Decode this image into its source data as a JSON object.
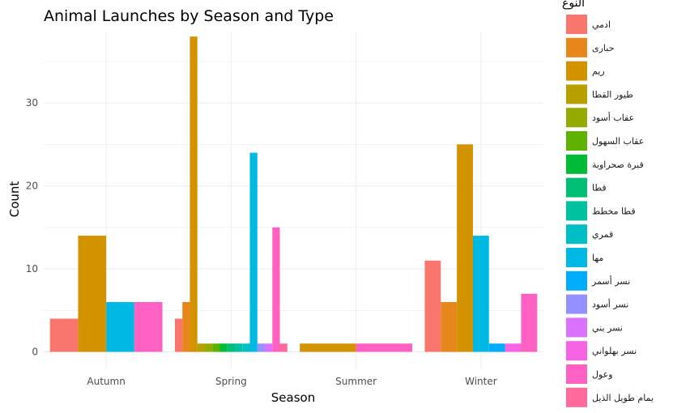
{
  "chart_data": {
    "type": "bar",
    "title": "Animal Launches by Season and Type",
    "xlabel": "Season",
    "ylabel": "Count",
    "ylim": [
      -2,
      38.5
    ],
    "yticks": [
      0,
      10,
      20,
      30
    ],
    "grid": true,
    "legend_position": "right",
    "legend_title": "النوع",
    "categories": [
      "Autumn",
      "Spring",
      "Summer",
      "Winter"
    ],
    "series": [
      {
        "name": "ادمي",
        "color": "#F8766D"
      },
      {
        "name": "حباری",
        "color": "#E7861B"
      },
      {
        "name": "ريم",
        "color": "#D39200"
      },
      {
        "name": "طيور القطا",
        "color": "#B79F00"
      },
      {
        "name": "عقاب أسود",
        "color": "#93AA00"
      },
      {
        "name": "عقاب السهول",
        "color": "#5EB300"
      },
      {
        "name": "قبرة صحراوية",
        "color": "#00BA38"
      },
      {
        "name": "قطا",
        "color": "#00BF74"
      },
      {
        "name": "قطا مخطط",
        "color": "#00C19F"
      },
      {
        "name": "قمري",
        "color": "#00BFC4"
      },
      {
        "name": "مها",
        "color": "#00B9E3"
      },
      {
        "name": "نسر أسمر",
        "color": "#00ADFA"
      },
      {
        "name": "نسر أسود",
        "color": "#9590FF"
      },
      {
        "name": "نسر بني",
        "color": "#DB72FB"
      },
      {
        "name": "نسر بهلواني",
        "color": "#F564E3"
      },
      {
        "name": "وعول",
        "color": "#FF61C3"
      },
      {
        "name": "يمام طويل الذيل",
        "color": "#FF699C"
      }
    ],
    "groups": [
      {
        "category": "Autumn",
        "bars": [
          {
            "series": 0,
            "value": 4
          },
          {
            "series": 2,
            "value": 14
          },
          {
            "series": 10,
            "value": 6
          },
          {
            "series": 15,
            "value": 6
          }
        ]
      },
      {
        "category": "Spring",
        "bars": [
          {
            "series": 0,
            "value": 4
          },
          {
            "series": 1,
            "value": 6
          },
          {
            "series": 2,
            "value": 38
          },
          {
            "series": 3,
            "value": 1
          },
          {
            "series": 4,
            "value": 1
          },
          {
            "series": 5,
            "value": 1
          },
          {
            "series": 6,
            "value": 1
          },
          {
            "series": 7,
            "value": 1
          },
          {
            "series": 8,
            "value": 1
          },
          {
            "series": 9,
            "value": 1
          },
          {
            "series": 10,
            "value": 24
          },
          {
            "series": 12,
            "value": 1
          },
          {
            "series": 13,
            "value": 1
          },
          {
            "series": 15,
            "value": 15
          },
          {
            "series": 16,
            "value": 1
          }
        ]
      },
      {
        "category": "Summer",
        "bars": [
          {
            "series": 2,
            "value": 1
          },
          {
            "series": 15,
            "value": 1
          }
        ]
      },
      {
        "category": "Winter",
        "bars": [
          {
            "series": 0,
            "value": 11
          },
          {
            "series": 1,
            "value": 6
          },
          {
            "series": 2,
            "value": 25
          },
          {
            "series": 10,
            "value": 14
          },
          {
            "series": 11,
            "value": 1
          },
          {
            "series": 14,
            "value": 1
          },
          {
            "series": 15,
            "value": 7
          }
        ]
      }
    ]
  }
}
